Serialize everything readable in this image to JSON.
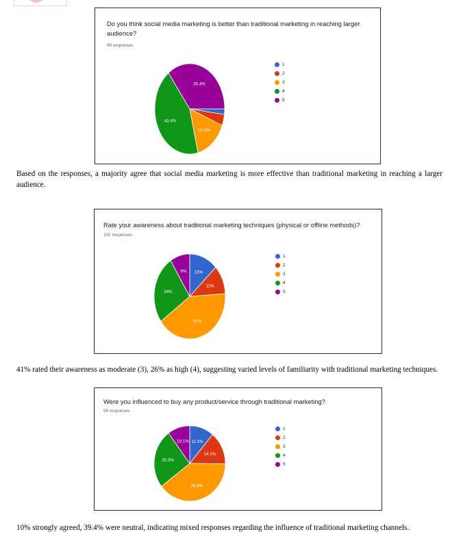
{
  "colors": {
    "s1": "#3366cc",
    "s2": "#dc3912",
    "s3": "#ff9900",
    "s4": "#109618",
    "s5": "#990099"
  },
  "legend_labels": [
    "1",
    "2",
    "3",
    "4",
    "5"
  ],
  "paragraphs": [
    "Based on the responses, a majority agree that social media marketing is more effective than traditional marketing in reaching a larger audience.",
    "41% rated their awareness as moderate (3), 26% as high (4), suggesting varied levels of familiarity with traditional marketing techniques.",
    "10% strongly agreed, 39.4% were neutral, indicating mixed responses regarding the influence of traditional marketing channels."
  ],
  "chart_data": [
    {
      "type": "pie",
      "title": "Do you think social media marketing is better than traditional marketing in reaching larger audience?",
      "subtitle": "99 responses",
      "categories": [
        "1",
        "2",
        "3",
        "4",
        "5"
      ],
      "values": [
        2.0,
        4.0,
        15.2,
        43.4,
        35.4
      ],
      "labels": [
        "",
        "",
        "15.2%",
        "43.4%",
        "35.4%"
      ],
      "legend": "right"
    },
    {
      "type": "pie",
      "title": "Rate your awareness about traditional marketing techniques (physical or offline methods)?",
      "subtitle": "100 responses",
      "categories": [
        "1",
        "2",
        "3",
        "4",
        "5"
      ],
      "values": [
        13,
        11,
        41,
        26,
        9
      ],
      "labels": [
        "13%",
        "11%",
        "41%",
        "26%",
        "9%"
      ],
      "legend": "right"
    },
    {
      "type": "pie",
      "title": "Were you influenced to buy any product/service through traditional marketing?",
      "subtitle": "99 responses",
      "categories": [
        "1",
        "2",
        "3",
        "4",
        "5"
      ],
      "values": [
        11.1,
        14.1,
        39.4,
        25.3,
        10.1
      ],
      "labels": [
        "11.1%",
        "14.1%",
        "39.4%",
        "25.3%",
        "10.1%"
      ],
      "legend": "right"
    }
  ]
}
